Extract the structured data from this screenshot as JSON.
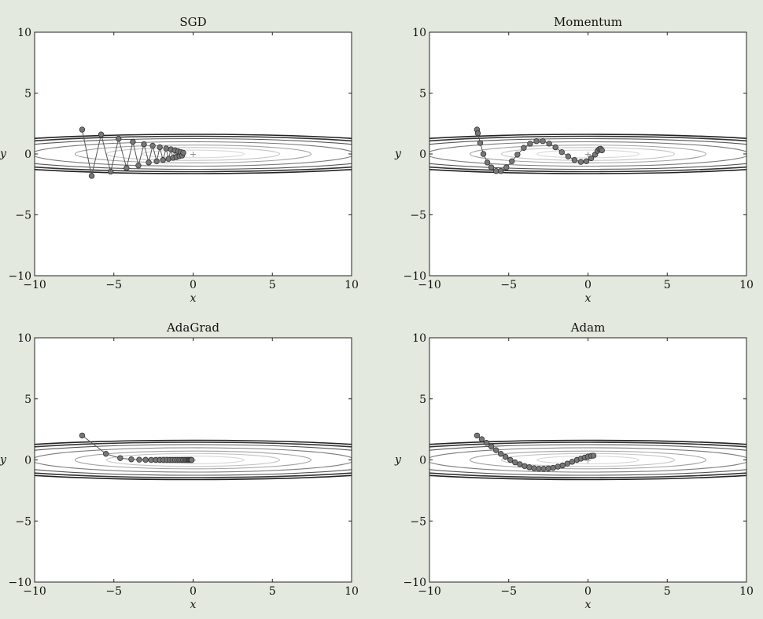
{
  "chart_data": [
    {
      "type": "line",
      "title": "SGD",
      "xlabel": "x",
      "ylabel": "y",
      "xlim": [
        -10,
        10
      ],
      "ylim": [
        -10,
        10
      ],
      "xticks": [
        -10,
        -5,
        0,
        5,
        10
      ],
      "yticks": [
        -10,
        -5,
        0,
        5,
        10
      ],
      "xtick_labels": [
        "−10",
        "−5",
        "0",
        "5",
        "10"
      ],
      "ytick_labels": [
        "−10",
        "−5",
        "0",
        "5",
        "10"
      ],
      "minimum": [
        0,
        0
      ],
      "series": [
        {
          "points": [
            [
              -7.0,
              2.0
            ],
            [
              -6.4,
              -1.8
            ],
            [
              -5.8,
              1.6
            ],
            [
              -5.2,
              -1.45
            ],
            [
              -4.7,
              1.25
            ],
            [
              -4.2,
              -1.15
            ],
            [
              -3.8,
              1.0
            ],
            [
              -3.45,
              -0.95
            ],
            [
              -3.1,
              0.8
            ],
            [
              -2.8,
              -0.7
            ],
            [
              -2.55,
              0.68
            ],
            [
              -2.3,
              -0.6
            ],
            [
              -2.1,
              0.55
            ],
            [
              -1.9,
              -0.5
            ],
            [
              -1.7,
              0.45
            ],
            [
              -1.55,
              -0.4
            ],
            [
              -1.4,
              0.38
            ],
            [
              -1.27,
              -0.32
            ],
            [
              -1.15,
              0.3
            ],
            [
              -1.05,
              -0.25
            ],
            [
              -0.95,
              0.22
            ],
            [
              -0.86,
              -0.18
            ],
            [
              -0.78,
              0.16
            ],
            [
              -0.7,
              -0.13
            ],
            [
              -0.62,
              0.1
            ]
          ]
        }
      ]
    },
    {
      "type": "line",
      "title": "Momentum",
      "xlabel": "x",
      "ylabel": "y",
      "xlim": [
        -10,
        10
      ],
      "ylim": [
        -10,
        10
      ],
      "xticks": [
        -10,
        -5,
        0,
        5,
        10
      ],
      "yticks": [
        -10,
        -5,
        0,
        5,
        10
      ],
      "xtick_labels": [
        "−10",
        "−5",
        "0",
        "5",
        "10"
      ],
      "ytick_labels": [
        "−10",
        "−5",
        "0",
        "5",
        "10"
      ],
      "minimum": [
        0,
        0
      ],
      "series": [
        {
          "points": [
            [
              -7.0,
              2.0
            ],
            [
              -6.95,
              1.7
            ],
            [
              -6.8,
              0.9
            ],
            [
              -6.6,
              0.0
            ],
            [
              -6.35,
              -0.7
            ],
            [
              -6.1,
              -1.1
            ],
            [
              -5.8,
              -1.4
            ],
            [
              -5.5,
              -1.4
            ],
            [
              -5.15,
              -1.1
            ],
            [
              -4.8,
              -0.6
            ],
            [
              -4.45,
              -0.05
            ],
            [
              -4.05,
              0.5
            ],
            [
              -3.65,
              0.85
            ],
            [
              -3.25,
              1.05
            ],
            [
              -2.85,
              1.05
            ],
            [
              -2.45,
              0.85
            ],
            [
              -2.05,
              0.55
            ],
            [
              -1.65,
              0.15
            ],
            [
              -1.25,
              -0.2
            ],
            [
              -0.85,
              -0.5
            ],
            [
              -0.45,
              -0.65
            ],
            [
              -0.1,
              -0.6
            ],
            [
              0.2,
              -0.35
            ],
            [
              0.45,
              -0.05
            ],
            [
              0.6,
              0.25
            ],
            [
              0.72,
              0.4
            ],
            [
              0.8,
              0.42
            ],
            [
              0.88,
              0.3
            ]
          ]
        }
      ]
    },
    {
      "type": "line",
      "title": "AdaGrad",
      "xlabel": "x",
      "ylabel": "y",
      "xlim": [
        -10,
        10
      ],
      "ylim": [
        -10,
        10
      ],
      "xticks": [
        -10,
        -5,
        0,
        5,
        10
      ],
      "yticks": [
        -10,
        -5,
        0,
        5,
        10
      ],
      "xtick_labels": [
        "−10",
        "−5",
        "0",
        "5",
        "10"
      ],
      "ytick_labels": [
        "−10",
        "−5",
        "0",
        "5",
        "10"
      ],
      "minimum": [
        0,
        0
      ],
      "series": [
        {
          "points": [
            [
              -7.0,
              2.0
            ],
            [
              -5.5,
              0.5
            ],
            [
              -4.6,
              0.15
            ],
            [
              -3.9,
              0.05
            ],
            [
              -3.4,
              0.02
            ],
            [
              -3.0,
              0.01
            ],
            [
              -2.65,
              0.0
            ],
            [
              -2.35,
              0.0
            ],
            [
              -2.1,
              0.0
            ],
            [
              -1.87,
              0.0
            ],
            [
              -1.66,
              0.0
            ],
            [
              -1.47,
              0.0
            ],
            [
              -1.3,
              0.0
            ],
            [
              -1.14,
              0.0
            ],
            [
              -1.0,
              0.0
            ],
            [
              -0.87,
              0.0
            ],
            [
              -0.75,
              0.0
            ],
            [
              -0.64,
              0.0
            ],
            [
              -0.54,
              0.0
            ],
            [
              -0.45,
              0.0
            ],
            [
              -0.37,
              0.0
            ],
            [
              -0.3,
              0.0
            ],
            [
              -0.24,
              0.0
            ],
            [
              -0.18,
              0.0
            ],
            [
              -0.13,
              0.0
            ],
            [
              -0.09,
              0.0
            ]
          ]
        }
      ]
    },
    {
      "type": "line",
      "title": "Adam",
      "xlabel": "x",
      "ylabel": "y",
      "xlim": [
        -10,
        10
      ],
      "ylim": [
        -10,
        10
      ],
      "xticks": [
        -10,
        -5,
        0,
        5,
        10
      ],
      "yticks": [
        -10,
        -5,
        0,
        5,
        10
      ],
      "xtick_labels": [
        "−10",
        "−5",
        "0",
        "5",
        "10"
      ],
      "ytick_labels": [
        "−10",
        "−5",
        "0",
        "5",
        "10"
      ],
      "minimum": [
        0,
        0
      ],
      "series": [
        {
          "points": [
            [
              -7.0,
              2.0
            ],
            [
              -6.7,
              1.7
            ],
            [
              -6.4,
              1.4
            ],
            [
              -6.1,
              1.1
            ],
            [
              -5.8,
              0.8
            ],
            [
              -5.5,
              0.5
            ],
            [
              -5.2,
              0.25
            ],
            [
              -4.9,
              0.0
            ],
            [
              -4.6,
              -0.2
            ],
            [
              -4.3,
              -0.35
            ],
            [
              -4.0,
              -0.5
            ],
            [
              -3.7,
              -0.6
            ],
            [
              -3.4,
              -0.68
            ],
            [
              -3.1,
              -0.72
            ],
            [
              -2.8,
              -0.72
            ],
            [
              -2.5,
              -0.7
            ],
            [
              -2.2,
              -0.65
            ],
            [
              -1.9,
              -0.55
            ],
            [
              -1.6,
              -0.45
            ],
            [
              -1.3,
              -0.3
            ],
            [
              -1.0,
              -0.15
            ],
            [
              -0.7,
              0.0
            ],
            [
              -0.45,
              0.1
            ],
            [
              -0.2,
              0.2
            ],
            [
              0.0,
              0.28
            ],
            [
              0.2,
              0.33
            ],
            [
              0.35,
              0.35
            ]
          ]
        }
      ]
    }
  ],
  "style": {
    "background": "#e4e9df",
    "plot_background": "#ffffff",
    "axis_color": "#222222",
    "marker_fill": "#777777",
    "marker_stroke": "#333333",
    "line_color": "#555555",
    "contour_colors": [
      "#222222",
      "#333333",
      "#555555",
      "#7a7a7a",
      "#a0a0a0",
      "#c4c4c4",
      "#d8d8d8"
    ]
  }
}
